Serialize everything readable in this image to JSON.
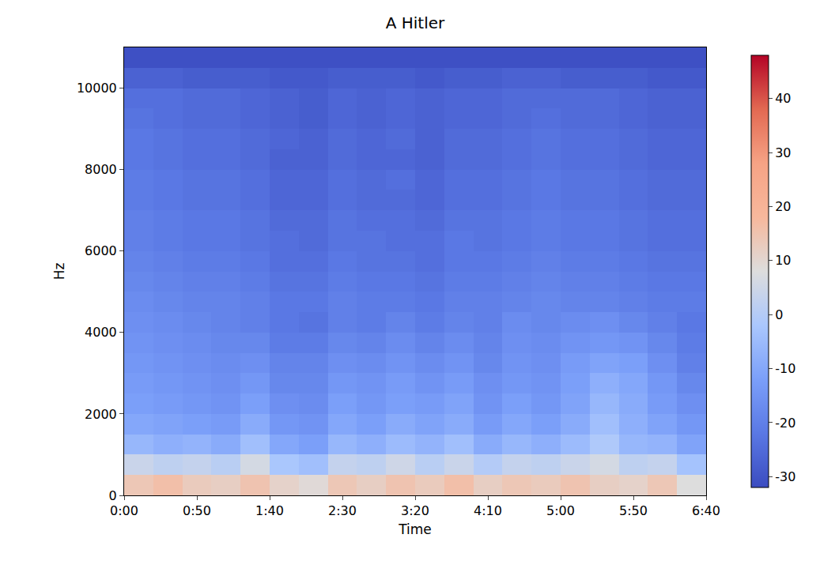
{
  "chart_data": {
    "type": "heatmap",
    "title": "A Hitler",
    "x_label": "Time",
    "y_label": "Hz",
    "x": [
      10,
      30,
      50,
      70,
      90,
      110,
      130,
      150,
      170,
      190,
      210,
      230,
      250,
      270,
      290,
      310,
      330,
      350,
      370,
      390
    ],
    "y": [
      250,
      750,
      1250,
      1750,
      2250,
      2750,
      3250,
      3750,
      4250,
      4750,
      5250,
      5750,
      6250,
      6750,
      7250,
      7750,
      8250,
      8750,
      9250,
      9750,
      10250,
      10750
    ],
    "cells": [
      [
        14,
        16,
        13,
        12,
        15,
        11,
        9,
        14,
        12,
        15,
        13,
        16,
        12,
        14,
        13,
        15,
        12,
        11,
        14,
        8
      ],
      [
        4,
        2,
        3,
        1,
        6,
        -2,
        -4,
        3,
        2,
        5,
        1,
        4,
        0,
        3,
        2,
        4,
        6,
        2,
        3,
        -3
      ],
      [
        -6,
        -8,
        -7,
        -9,
        -4,
        -10,
        -12,
        -6,
        -8,
        -5,
        -7,
        -4,
        -9,
        -6,
        -8,
        -5,
        -1,
        -6,
        -7,
        -11
      ],
      [
        -10,
        -11,
        -12,
        -13,
        -9,
        -14,
        -15,
        -10,
        -12,
        -9,
        -11,
        -9,
        -13,
        -10,
        -12,
        -9,
        -4,
        -8,
        -11,
        -14
      ],
      [
        -12,
        -13,
        -14,
        -15,
        -12,
        -16,
        -17,
        -12,
        -14,
        -12,
        -13,
        -11,
        -15,
        -12,
        -14,
        -11,
        -6,
        -9,
        -13,
        -16
      ],
      [
        -13,
        -14,
        -15,
        -16,
        -14,
        -18,
        -18,
        -14,
        -15,
        -13,
        -15,
        -13,
        -16,
        -14,
        -15,
        -12,
        -8,
        -10,
        -14,
        -18
      ],
      [
        -14,
        -15,
        -16,
        -17,
        -16,
        -19,
        -19,
        -16,
        -17,
        -15,
        -17,
        -15,
        -18,
        -15,
        -16,
        -13,
        -11,
        -12,
        -16,
        -20
      ],
      [
        -15,
        -16,
        -17,
        -18,
        -18,
        -21,
        -21,
        -18,
        -19,
        -17,
        -19,
        -17,
        -19,
        -16,
        -17,
        -15,
        -14,
        -15,
        -18,
        -21
      ],
      [
        -16,
        -17,
        -18,
        -19,
        -20,
        -22,
        -23,
        -20,
        -21,
        -19,
        -21,
        -19,
        -20,
        -17,
        -18,
        -17,
        -16,
        -18,
        -20,
        -22
      ],
      [
        -17,
        -18,
        -19,
        -19,
        -20,
        -22,
        -22,
        -20,
        -21,
        -21,
        -22,
        -20,
        -20,
        -19,
        -18,
        -19,
        -19,
        -20,
        -21,
        -21
      ],
      [
        -18,
        -19,
        -20,
        -20,
        -21,
        -23,
        -23,
        -21,
        -22,
        -22,
        -23,
        -21,
        -21,
        -20,
        -19,
        -20,
        -20,
        -21,
        -22,
        -22
      ],
      [
        -19,
        -20,
        -21,
        -21,
        -22,
        -24,
        -24,
        -22,
        -23,
        -23,
        -24,
        -22,
        -22,
        -21,
        -20,
        -21,
        -21,
        -22,
        -23,
        -23
      ],
      [
        -20,
        -21,
        -22,
        -22,
        -23,
        -24,
        -25,
        -23,
        -23,
        -24,
        -24,
        -22,
        -23,
        -22,
        -21,
        -22,
        -22,
        -23,
        -24,
        -24
      ],
      [
        -20,
        -21,
        -22,
        -22,
        -23,
        -25,
        -25,
        -23,
        -24,
        -24,
        -25,
        -23,
        -23,
        -22,
        -21,
        -22,
        -22,
        -23,
        -24,
        -24
      ],
      [
        -21,
        -22,
        -23,
        -23,
        -24,
        -26,
        -26,
        -24,
        -25,
        -25,
        -26,
        -24,
        -24,
        -23,
        -22,
        -23,
        -23,
        -24,
        -25,
        -25
      ],
      [
        -21,
        -22,
        -23,
        -23,
        -24,
        -26,
        -26,
        -24,
        -25,
        -24,
        -26,
        -24,
        -24,
        -23,
        -22,
        -23,
        -23,
        -24,
        -25,
        -25
      ],
      [
        -22,
        -23,
        -24,
        -24,
        -25,
        -27,
        -27,
        -25,
        -26,
        -26,
        -27,
        -25,
        -25,
        -24,
        -23,
        -24,
        -24,
        -25,
        -26,
        -26
      ],
      [
        -22,
        -23,
        -24,
        -24,
        -25,
        -26,
        -27,
        -25,
        -26,
        -25,
        -27,
        -25,
        -25,
        -24,
        -23,
        -24,
        -24,
        -25,
        -26,
        -26
      ],
      [
        -23,
        -24,
        -25,
        -25,
        -26,
        -27,
        -28,
        -26,
        -27,
        -26,
        -27,
        -26,
        -26,
        -25,
        -24,
        -25,
        -25,
        -26,
        -27,
        -27
      ],
      [
        -24,
        -24,
        -25,
        -25,
        -26,
        -27,
        -28,
        -26,
        -27,
        -26,
        -27,
        -26,
        -26,
        -25,
        -25,
        -25,
        -25,
        -26,
        -27,
        -27
      ],
      [
        -27,
        -27,
        -28,
        -28,
        -28,
        -29,
        -29,
        -28,
        -28,
        -28,
        -29,
        -28,
        -28,
        -27,
        -27,
        -28,
        -28,
        -28,
        -29,
        -29
      ],
      [
        -31,
        -31,
        -31,
        -31,
        -31,
        -31,
        -31,
        -31,
        -31,
        -31,
        -31,
        -31,
        -31,
        -31,
        -31,
        -31,
        -31,
        -31,
        -31,
        -31
      ]
    ],
    "xlim": [
      0,
      400
    ],
    "xticks": [
      {
        "value": 0,
        "label": "0:00"
      },
      {
        "value": 50,
        "label": "0:50"
      },
      {
        "value": 100,
        "label": "1:40"
      },
      {
        "value": 150,
        "label": "2:30"
      },
      {
        "value": 200,
        "label": "3:20"
      },
      {
        "value": 250,
        "label": "4:10"
      },
      {
        "value": 300,
        "label": "5:00"
      },
      {
        "value": 350,
        "label": "5:50"
      },
      {
        "value": 400,
        "label": "6:40"
      }
    ],
    "ylim": [
      0,
      11000
    ],
    "yticks": [
      0,
      2000,
      4000,
      6000,
      8000,
      10000
    ],
    "colorbar_range": [
      -32,
      48
    ],
    "colorbar_ticks": [
      -30,
      -20,
      -10,
      0,
      10,
      20,
      30,
      40
    ]
  }
}
